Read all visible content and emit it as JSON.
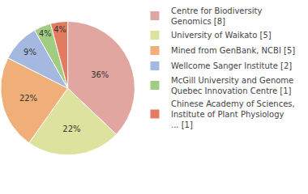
{
  "chart_data": {
    "type": "pie",
    "categories": [
      "Centre for Biodiversity Genomics [8]",
      "University of Waikato [5]",
      "Mined from GenBank, NCBI [5]",
      "Wellcome Sanger Institute [2]",
      "McGill University and Genome Quebec Innovation Centre [1]",
      "Chinese Academy of Sciences, Institute of Plant Physiology ... [1]"
    ],
    "values": [
      36,
      22,
      22,
      9,
      4,
      4
    ],
    "value_labels": [
      "36%",
      "22%",
      "22%",
      "9%",
      "4%",
      "4%"
    ],
    "colors": [
      "#e2a6a0",
      "#dde39f",
      "#f0ae78",
      "#a5b8e0",
      "#a2cc82",
      "#e27b60"
    ],
    "data_labels": true,
    "legend": "right"
  }
}
